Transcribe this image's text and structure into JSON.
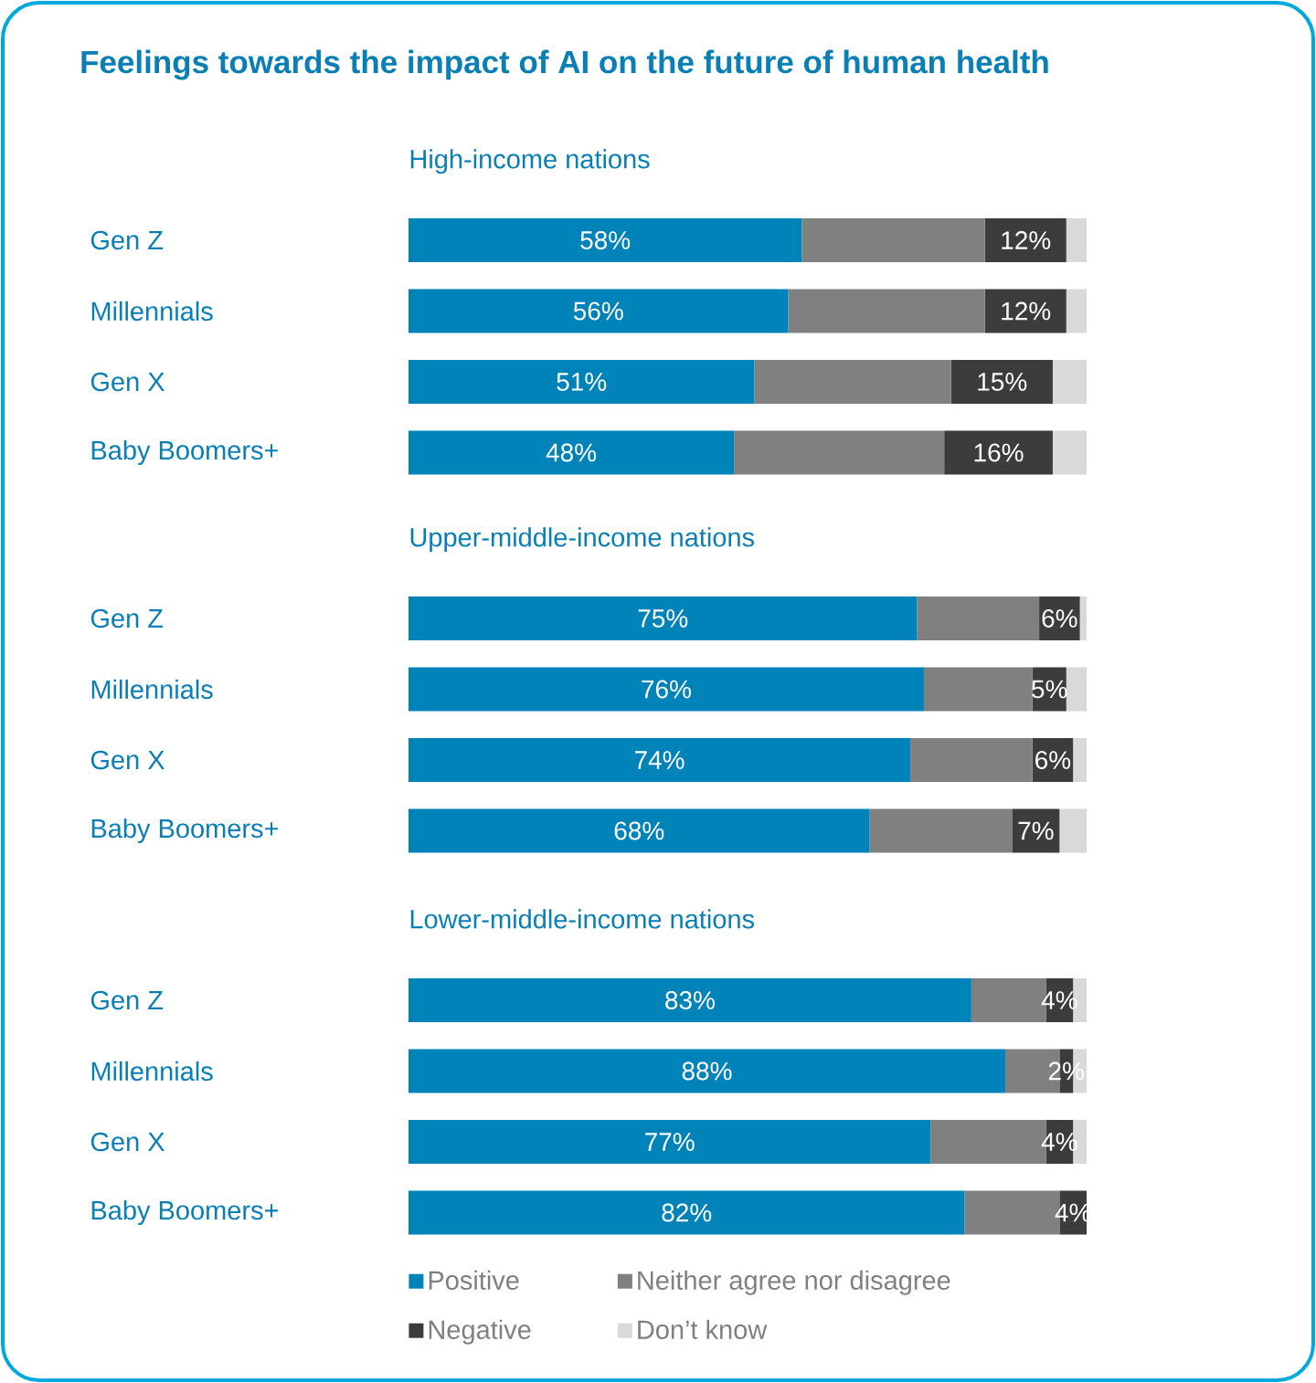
{
  "chart_data": [
    {
      "type": "bar",
      "orientation": "horizontal",
      "stacked": true,
      "title": "Feelings towards the impact of AI on the future of human health",
      "subtitle": "High-income nations",
      "categories": [
        "Gen Z",
        "Millennials",
        "Gen X",
        "Baby Boomers+"
      ],
      "xlim": [
        0,
        100
      ],
      "tick_labels": false,
      "series": [
        {
          "color": "#0083b8",
          "values": [
            58,
            56,
            51,
            48
          ],
          "value_labels": [
            "58%",
            "56%",
            "51%",
            "48%"
          ]
        },
        {
          "color": "#808080",
          "values": [
            27,
            29,
            29,
            31
          ]
        },
        {
          "color": "#3c3c3c",
          "values": [
            12,
            12,
            15,
            16
          ],
          "value_labels": [
            "12%",
            "12%",
            "15%",
            "16%"
          ]
        },
        {
          "color": "#d9d9d9",
          "values": [
            3,
            3,
            5,
            5
          ]
        }
      ]
    },
    {
      "type": "bar",
      "orientation": "horizontal",
      "stacked": true,
      "subtitle": "Upper-middle-income nations",
      "categories": [
        "Gen Z",
        "Millennials",
        "Gen X",
        "Baby Boomers+"
      ],
      "xlim": [
        0,
        100
      ],
      "tick_labels": false,
      "series": [
        {
          "color": "#0083b8",
          "values": [
            75,
            76,
            74,
            68
          ],
          "value_labels": [
            "75%",
            "76%",
            "74%",
            "68%"
          ]
        },
        {
          "color": "#808080",
          "values": [
            18,
            16,
            18,
            21
          ]
        },
        {
          "color": "#3c3c3c",
          "values": [
            6,
            5,
            6,
            7
          ],
          "value_labels": [
            "6%",
            "5%",
            "6%",
            "7%"
          ]
        },
        {
          "color": "#d9d9d9",
          "values": [
            1,
            3,
            2,
            4
          ]
        }
      ]
    },
    {
      "type": "bar",
      "orientation": "horizontal",
      "stacked": true,
      "subtitle": "Lower-middle-income nations",
      "categories": [
        "Gen Z",
        "Millennials",
        "Gen X",
        "Baby Boomers+"
      ],
      "xlim": [
        0,
        100
      ],
      "tick_labels": false,
      "legend": "bottom",
      "series": [
        {
          "name": "Positive",
          "color": "#0083b8",
          "values": [
            83,
            88,
            77,
            82
          ],
          "value_labels": [
            "83%",
            "88%",
            "77%",
            "82%"
          ]
        },
        {
          "name": "Neither agree nor disagree",
          "color": "#808080",
          "values": [
            11,
            8,
            17,
            14
          ]
        },
        {
          "name": "Negative",
          "color": "#3c3c3c",
          "values": [
            4,
            2,
            4,
            4
          ],
          "value_labels": [
            "4%",
            "2%",
            "4%",
            "4%"
          ]
        },
        {
          "name": "Don’t know",
          "color": "#d9d9d9",
          "values": [
            2,
            2,
            2,
            0
          ]
        }
      ]
    }
  ]
}
